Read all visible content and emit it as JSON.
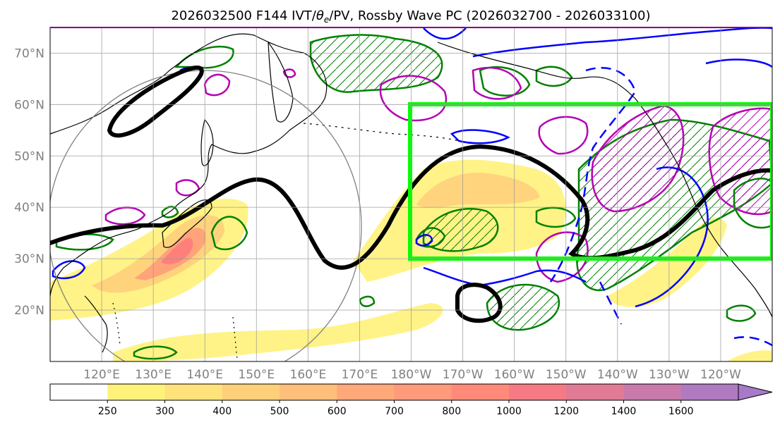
{
  "title": {
    "text": "2026032500 F144 IVT/",
    "theta_symbol": "θ",
    "theta_sub": "e",
    "rest": "/PV, Rossby Wave PC (2026032700 - 2026033100)"
  },
  "axes": {
    "label_color": "#808080",
    "lat_labels": [
      "70°N",
      "60°N",
      "50°N",
      "40°N",
      "30°N",
      "20°N"
    ],
    "lat_values": [
      70,
      60,
      50,
      40,
      30,
      20
    ],
    "lon_labels": [
      "120°E",
      "130°E",
      "140°E",
      "150°E",
      "160°E",
      "170°E",
      "180°W",
      "170°W",
      "160°W",
      "150°W",
      "140°W",
      "130°W",
      "120°W"
    ],
    "lon_values": [
      120,
      130,
      140,
      150,
      160,
      170,
      180,
      190,
      200,
      210,
      220,
      230,
      240
    ],
    "lat_range": [
      10,
      75
    ],
    "lon_range": [
      110,
      250
    ],
    "grid": true
  },
  "colorbar": {
    "labels": [
      "250",
      "300",
      "400",
      "500",
      "600",
      "700",
      "800",
      "1000",
      "1200",
      "1400",
      "1600"
    ],
    "colors": [
      "#ffffff",
      "#fff27a",
      "#ffe37a",
      "#ffcf7a",
      "#ffbe7a",
      "#ffa97a",
      "#ff9a7a",
      "#ff8a7a",
      "#f57a85",
      "#e07a95",
      "#c97aab",
      "#b07ac1",
      "#a67ac8"
    ]
  },
  "map_colors": {
    "ivt_light": "#fff27a",
    "ivt_mid": "#ffcc7a",
    "ivt_high": "#ff9a7a",
    "ivt_peak": "#ff7a7a",
    "pv_contour": "#000000",
    "theta_e_pos": "#008000",
    "blue_contour": "#0000ff",
    "magenta_contour": "#b400b4",
    "region_box": "#00ff00",
    "coastline": "#000000",
    "circle": "#808080"
  },
  "region_box": {
    "lon_min": 180,
    "lon_max": 250,
    "lat_min": 30,
    "lat_max": 60
  }
}
